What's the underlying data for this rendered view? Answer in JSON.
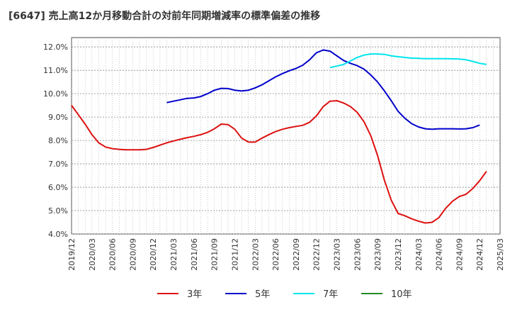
{
  "chart_data": {
    "type": "line",
    "title": "[6647]  売上高12か月移動合計の対前年同期増減率の標準偏差の推移",
    "xlabel": "",
    "ylabel": "",
    "ylim": [
      4.0,
      12.4
    ],
    "y_ticks": [
      "4.0%",
      "5.0%",
      "6.0%",
      "7.0%",
      "8.0%",
      "9.0%",
      "10.0%",
      "11.0%",
      "12.0%"
    ],
    "x_ticks": [
      "2019/12",
      "2020/03",
      "2020/06",
      "2020/09",
      "2020/12",
      "2021/03",
      "2021/06",
      "2021/09",
      "2021/12",
      "2022/03",
      "2022/06",
      "2022/09",
      "2022/12",
      "2023/03",
      "2023/06",
      "2023/09",
      "2023/12",
      "2024/03",
      "2024/06",
      "2024/09",
      "2024/12",
      "2025/03"
    ],
    "x_range": [
      "2019/12",
      "2025/03"
    ],
    "grid": true,
    "legend_position": "bottom",
    "series": [
      {
        "name": "3年",
        "color": "#dd1111",
        "start": "2019/12",
        "values": [
          9.5,
          9.1,
          8.7,
          8.25,
          7.9,
          7.72,
          7.65,
          7.62,
          7.6,
          7.6,
          7.6,
          7.62,
          7.7,
          7.8,
          7.9,
          7.98,
          8.05,
          8.12,
          8.18,
          8.25,
          8.35,
          8.5,
          8.7,
          8.68,
          8.48,
          8.1,
          7.93,
          7.93,
          8.1,
          8.25,
          8.38,
          8.48,
          8.55,
          8.6,
          8.65,
          8.78,
          9.05,
          9.45,
          9.68,
          9.7,
          9.6,
          9.45,
          9.2,
          8.8,
          8.2,
          7.35,
          6.3,
          5.45,
          4.88,
          4.78,
          4.65,
          4.55,
          4.47,
          4.5,
          4.7,
          5.1,
          5.4,
          5.6,
          5.7,
          5.95,
          6.28,
          6.68
        ]
      },
      {
        "name": "5年",
        "color": "#0000cc",
        "start": "2021/02",
        "values": [
          9.62,
          9.68,
          9.74,
          9.8,
          9.82,
          9.88,
          10.0,
          10.15,
          10.23,
          10.22,
          10.15,
          10.12,
          10.15,
          10.25,
          10.38,
          10.55,
          10.72,
          10.86,
          10.98,
          11.08,
          11.22,
          11.45,
          11.75,
          11.87,
          11.82,
          11.62,
          11.42,
          11.3,
          11.2,
          11.05,
          10.8,
          10.5,
          10.12,
          9.7,
          9.25,
          8.95,
          8.72,
          8.58,
          8.5,
          8.48,
          8.5,
          8.5,
          8.5,
          8.49,
          8.5,
          8.55,
          8.66
        ]
      },
      {
        "name": "7年",
        "color": "#00e5ee",
        "start": "2023/02",
        "values": [
          11.12,
          11.18,
          11.25,
          11.4,
          11.55,
          11.65,
          11.7,
          11.7,
          11.68,
          11.62,
          11.58,
          11.55,
          11.52,
          11.51,
          11.5,
          11.5,
          11.5,
          11.5,
          11.49,
          11.48,
          11.45,
          11.38,
          11.3,
          11.25
        ]
      },
      {
        "name": "10年",
        "color": "#228b22",
        "start": "2019/12",
        "values": []
      }
    ]
  }
}
